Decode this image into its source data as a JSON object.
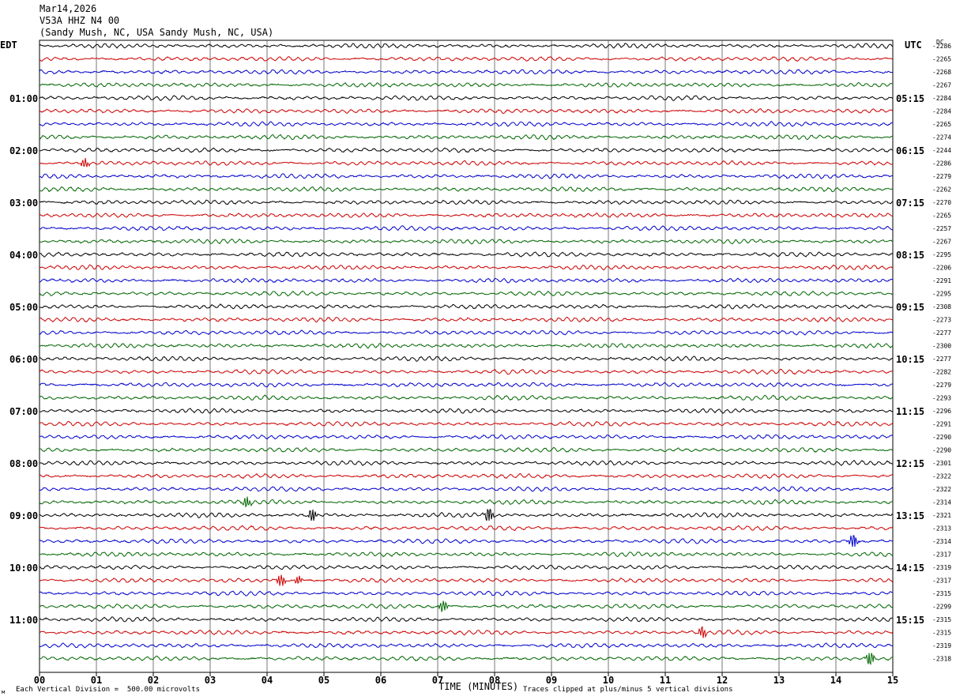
{
  "header": {
    "date": "Mar14,2026",
    "station": "V53A HHZ N4 00",
    "location": "(Sandy Mush, NC, USA Sandy Mush, NC, USA)"
  },
  "left_tz": "EDT",
  "right_tz": "UTC",
  "dc_label": "DC",
  "footer": {
    "scale": "Each Vertical Division =  500.00 microvolts",
    "clip": "Traces clipped at plus/minus 5 vertical divisions",
    "corner_mark": "м"
  },
  "colors": {
    "trace_cycle": [
      "#000000",
      "#cc0000",
      "#0000cc",
      "#006600"
    ],
    "grid": "#000000"
  },
  "chart_data": {
    "type": "line",
    "title": "",
    "xlabel": "TIME (MINUTES)",
    "x_ticks": [
      "00",
      "01",
      "02",
      "03",
      "04",
      "05",
      "06",
      "07",
      "08",
      "09",
      "10",
      "11",
      "12",
      "13",
      "14",
      "15"
    ],
    "xlim": [
      0,
      15
    ],
    "left_hour_labels": [
      "01:00",
      "02:00",
      "03:00",
      "04:00",
      "05:00",
      "06:00",
      "07:00",
      "08:00",
      "09:00",
      "10:00",
      "11:00"
    ],
    "right_hour_labels": [
      "05:15",
      "06:15",
      "07:15",
      "08:15",
      "09:15",
      "10:15",
      "11:15",
      "12:15",
      "13:15",
      "14:15",
      "15:15"
    ],
    "dc_offsets": [
      "-2286",
      "-2265",
      "-2268",
      "-2267",
      "-2284",
      "-2284",
      "-2265",
      "-2274",
      "-2244",
      "-2286",
      "-2279",
      "-2262",
      "-2270",
      "-2265",
      "-2257",
      "-2267",
      "-2295",
      "-2206",
      "-2291",
      "-2295",
      "-2308",
      "-2273",
      "-2277",
      "-2300",
      "-2277",
      "-2282",
      "-2279",
      "-2293",
      "-2296",
      "-2291",
      "-2290",
      "-2290",
      "-2301",
      "-2322",
      "-2322",
      "-2314",
      "-2321",
      "-2313",
      "-2314",
      "-2317",
      "-2319",
      "-2317",
      "-2315",
      "-2299",
      "-2315",
      "-2315",
      "-2319",
      "-2318"
    ],
    "trace_count": 48,
    "events": [
      {
        "trace": 9,
        "minute": 0.8,
        "amp": 0.45
      },
      {
        "trace": 35,
        "minute": 3.65,
        "amp": 0.6
      },
      {
        "trace": 36,
        "minute": 4.8,
        "amp": 0.7
      },
      {
        "trace": 36,
        "minute": 7.9,
        "amp": 0.75
      },
      {
        "trace": 38,
        "minute": 14.3,
        "amp": 0.9
      },
      {
        "trace": 41,
        "minute": 4.25,
        "amp": 0.75
      },
      {
        "trace": 41,
        "minute": 4.55,
        "amp": 0.4
      },
      {
        "trace": 43,
        "minute": 7.1,
        "amp": 0.7
      },
      {
        "trace": 45,
        "minute": 11.65,
        "amp": 0.55
      },
      {
        "trace": 47,
        "minute": 14.6,
        "amp": 0.9
      }
    ]
  }
}
